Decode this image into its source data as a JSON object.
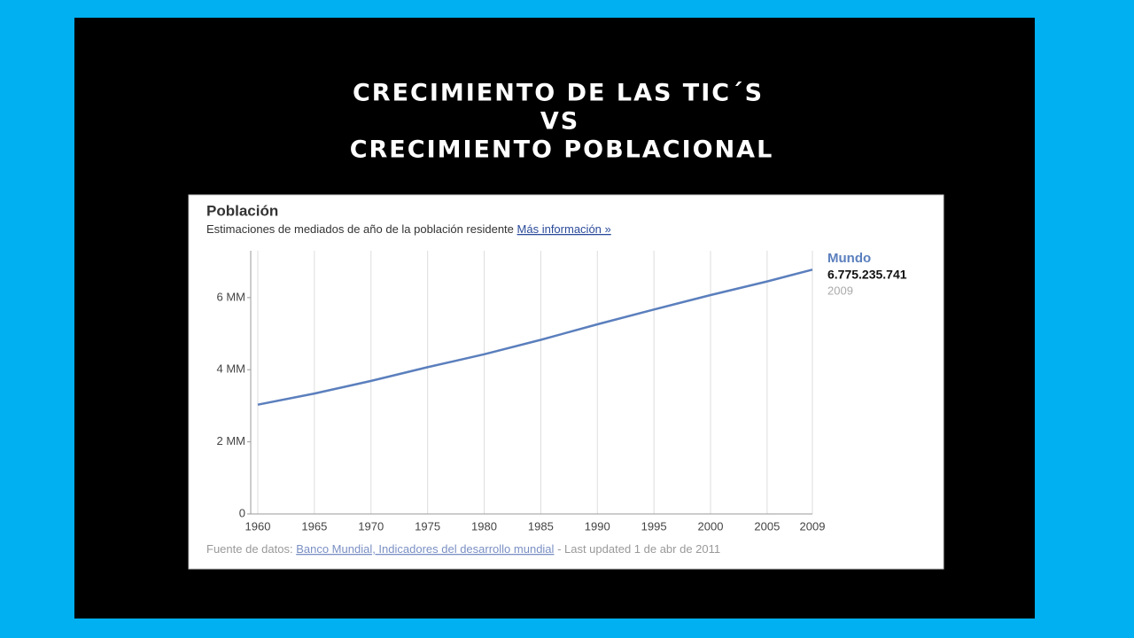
{
  "slide_title": [
    "CRECIMIENTO DE LAS TIC´S",
    "VS",
    "CRECIMIENTO POBLACIONAL"
  ],
  "chart_data": {
    "type": "line",
    "title": "Población",
    "subtitle": "Estimaciones de mediados de año de la población residente",
    "subtitle_link": "Más información »",
    "source_label": "Fuente de datos:",
    "source_link": "Banco Mundial, Indicadores del desarrollo mundial",
    "updated": "- Last updated 1 de abr de 2011",
    "x": [
      1960,
      1965,
      1970,
      1975,
      1980,
      1985,
      1990,
      1995,
      2000,
      2005,
      2009
    ],
    "series": [
      {
        "name": "Mundo",
        "color": "#5b7fbd",
        "values": [
          3.03,
          3.34,
          3.69,
          4.07,
          4.43,
          4.83,
          5.26,
          5.67,
          6.07,
          6.45,
          6.775235741
        ],
        "value_labels": [
          null,
          null,
          null,
          null,
          null,
          null,
          null,
          null,
          null,
          null,
          "6.775.235.741"
        ]
      }
    ],
    "xlim": [
      1960,
      2009
    ],
    "xticks": [
      1960,
      1965,
      1970,
      1975,
      1980,
      1985,
      1990,
      1995,
      2000,
      2005,
      2009
    ],
    "ylim": [
      0,
      7.3
    ],
    "yticks": [
      0,
      {
        "value": 2,
        "label": "2 MM"
      },
      {
        "value": 4,
        "label": "4 MM"
      },
      {
        "value": 6,
        "label": "6 MM"
      }
    ],
    "grid": "x"
  }
}
